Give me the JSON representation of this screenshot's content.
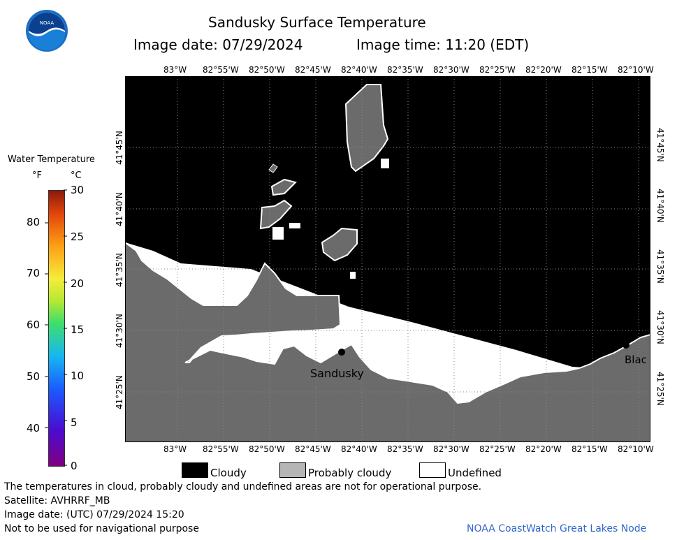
{
  "header": {
    "title": "Sandusky Surface Temperature",
    "image_date": "Image date: 07/29/2024",
    "image_time": "Image time: 11:20 (EDT)"
  },
  "colorbar": {
    "title": "Water Temperature",
    "unit_f": "°F",
    "unit_c": "°C",
    "f_ticks": [
      "80",
      "70",
      "60",
      "50",
      "40"
    ],
    "c_ticks": [
      "30",
      "25",
      "20",
      "15",
      "10",
      "5",
      "0"
    ],
    "range_c": [
      0,
      30
    ]
  },
  "map": {
    "lon_labels": [
      "83°W",
      "82°55'W",
      "82°50'W",
      "82°45'W",
      "82°40'W",
      "82°35'W",
      "82°30'W",
      "82°25'W",
      "82°20'W",
      "82°15'W",
      "82°10'W"
    ],
    "lat_labels": [
      "41°45'N",
      "41°40'N",
      "41°35'N",
      "41°30'N",
      "41°25'N"
    ],
    "places": {
      "sandusky": "Sandusky",
      "blac": "Blac"
    },
    "colors": {
      "cloudy": "#000000",
      "probably_cloudy": "#6b6b6b",
      "undefined": "#ffffff"
    }
  },
  "legend": {
    "cloudy": "Cloudy",
    "probably_cloudy": "Probably cloudy",
    "undefined": "Undefined"
  },
  "footer": {
    "note": "The temperatures in cloud, probably cloudy and undefined areas are not for operational purpose.",
    "satellite": "Satellite: AVHRRF_MB",
    "utc_date": "Image date: (UTC) 07/29/2024  15:20",
    "nav_warning": "Not to be used for navigational purpose",
    "credit": "NOAA CoastWatch Great Lakes Node"
  },
  "logo": {
    "text": "NOAA"
  }
}
